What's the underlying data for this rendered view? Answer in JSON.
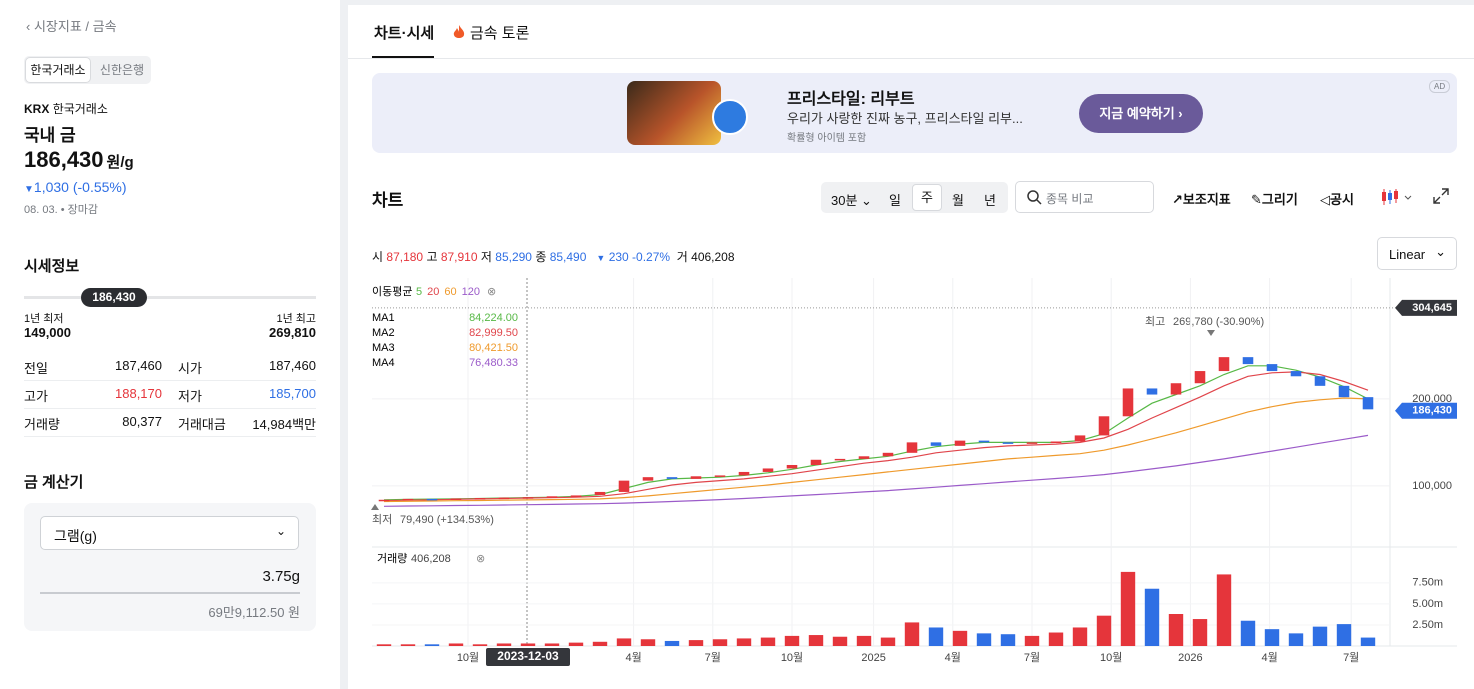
{
  "sidebar": {
    "breadcrumb": "시장지표 / 금속",
    "source_tabs": [
      "한국거래소",
      "신한은행"
    ],
    "exchange_code": "KRX",
    "exchange": "한국거래소",
    "name": "국내 금",
    "price": "186,430",
    "unit": "원/g",
    "change": "1,030 (-0.55%)",
    "date": "08. 03.",
    "status": "장마감",
    "section_title": "시세정보",
    "range_current": "186,430",
    "low_label": "1년 최저",
    "low": "149,000",
    "high_label": "1년 최고",
    "high": "269,810",
    "stats": [
      [
        "전일",
        "187,460",
        "시가",
        "187,460"
      ],
      [
        "고가",
        "188,170",
        "저가",
        "185,700"
      ],
      [
        "거래량",
        "80,377",
        "거래대금",
        "14,984백만"
      ]
    ],
    "calc_title": "금 계산기",
    "calc_unit": "그램(g)",
    "calc_amount": "3.75g",
    "calc_result": "69만9,112.50 원"
  },
  "tabs": [
    "차트·시세",
    "금속 토론"
  ],
  "ad": {
    "title": "프리스타일: 리부트",
    "description": "우리가 사랑한 진짜 농구, 프리스타일 리부...",
    "note": "확률형 아이템 포함",
    "button": "지금 예약하기 ›",
    "badge": "AD"
  },
  "toolbar": {
    "title": "차트",
    "interval": "30분",
    "periods": [
      "일",
      "주",
      "월",
      "년"
    ],
    "search": "종목 비교",
    "tools": [
      "보조지표",
      "그리기",
      "공시"
    ],
    "scale": "Linear"
  },
  "quote": {
    "open_label": "시",
    "open": "87,180",
    "high_label": "고",
    "high": "87,910",
    "low_label": "저",
    "low": "85,290",
    "close_label": "종",
    "close": "85,490",
    "change": "230 -0.27%",
    "volume_label": "거",
    "volume": "406,208"
  },
  "chart_data": {
    "type": "candlestick",
    "categories": [
      null,
      null,
      null,
      null,
      null,
      null,
      null,
      null,
      null,
      null,
      null,
      null,
      null,
      null,
      null,
      null,
      null,
      null,
      null,
      null,
      null,
      null,
      null,
      null,
      null,
      null,
      null,
      null,
      null,
      null,
      null,
      null,
      null,
      null,
      null,
      null,
      null,
      null,
      null,
      null,
      null,
      null
    ],
    "open": [
      83500,
      84000,
      85000,
      84500,
      85500,
      86000,
      86500,
      87000,
      88000,
      89500,
      93000,
      106000,
      110000,
      108000,
      111000,
      112000,
      116000,
      120000,
      124000,
      130000,
      131000,
      134000,
      138000,
      150000,
      146000,
      152000,
      150000,
      149000,
      150000,
      151000,
      158000,
      180000,
      212000,
      205000,
      218000,
      232000,
      248000,
      240000,
      232000,
      226000,
      215000,
      202000
    ],
    "close": [
      84000,
      85000,
      84500,
      85500,
      86000,
      86500,
      87000,
      88000,
      89000,
      93000,
      106000,
      110000,
      108000,
      111000,
      112000,
      116000,
      120000,
      124000,
      130000,
      131000,
      134000,
      138000,
      150000,
      146000,
      152000,
      150000,
      149000,
      150000,
      151000,
      158000,
      180000,
      212000,
      205000,
      218000,
      232000,
      248000,
      240000,
      232000,
      226000,
      215000,
      202000,
      188000
    ],
    "up_color": "#e5353b",
    "down_color": "#2f6fe4",
    "series": [
      {
        "name": "MA1",
        "color": "#57b846",
        "values": [
          84000,
          84500,
          84800,
          85000,
          85500,
          86000,
          86500,
          87000,
          88000,
          90000,
          97000,
          104000,
          108000,
          109000,
          110000,
          112000,
          115000,
          119000,
          124000,
          128000,
          131000,
          134000,
          140000,
          145000,
          148000,
          150000,
          150000,
          150000,
          150000,
          152000,
          160000,
          178000,
          195000,
          205000,
          215000,
          228000,
          238000,
          238000,
          233000,
          225000,
          214000,
          200000
        ]
      },
      {
        "name": "MA2",
        "color": "#e0454b",
        "values": [
          83000,
          83500,
          84000,
          84500,
          85000,
          85500,
          86000,
          86500,
          87000,
          88000,
          91000,
          96000,
          101000,
          104000,
          106000,
          108000,
          111000,
          114000,
          118000,
          122000,
          126000,
          129000,
          133000,
          138000,
          141000,
          144000,
          146000,
          147000,
          148000,
          150000,
          155000,
          165000,
          178000,
          190000,
          202000,
          215000,
          226000,
          230000,
          231000,
          228000,
          220000,
          210000
        ]
      },
      {
        "name": "MA3",
        "color": "#ef9a2c",
        "values": [
          82000,
          82300,
          82600,
          82900,
          83200,
          83500,
          83800,
          84200,
          84600,
          85000,
          86500,
          88500,
          91000,
          93500,
          96000,
          98500,
          101000,
          104000,
          107000,
          110000,
          113000,
          116000,
          119000,
          122000,
          125000,
          128000,
          131000,
          133000,
          135000,
          137000,
          141000,
          147000,
          154000,
          161000,
          169000,
          177000,
          185000,
          191000,
          196000,
          199000,
          201000,
          200000
        ]
      },
      {
        "name": "MA4",
        "color": "#9b5bc9",
        "values": [
          76500,
          76800,
          77100,
          77400,
          77700,
          78000,
          78300,
          78700,
          79100,
          79500,
          80200,
          81000,
          82000,
          83000,
          84200,
          85500,
          87000,
          88500,
          90000,
          91500,
          93000,
          94500,
          96500,
          98500,
          100500,
          102500,
          104500,
          106500,
          108500,
          110500,
          113000,
          116000,
          119500,
          123000,
          127000,
          131000,
          135500,
          140000,
          144500,
          149000,
          153500,
          158000
        ]
      }
    ],
    "ma_legend": {
      "title": "이동평균",
      "periods": [
        5,
        20,
        60,
        120
      ],
      "last_values": [
        "84,224.00",
        "82,999.50",
        "80,421.50",
        "76,480.33"
      ]
    },
    "ylim": [
      32000,
      339000
    ],
    "yticks": [
      {
        "value": 100000,
        "label": "100,000"
      },
      {
        "value": 200000,
        "label": "200,000"
      }
    ],
    "crosshair": {
      "value": 304645,
      "label": "304,645",
      "date": "2023-12-03"
    },
    "current": {
      "value": 186430,
      "label": "186,430"
    },
    "max_annotation": {
      "label": "최고",
      "text": "269,780 (-30.90%)"
    },
    "min_annotation": {
      "label": "최저",
      "text": "79,490 (+134.53%)"
    },
    "xlim": [
      -0.5,
      41.5
    ],
    "xticks": [
      {
        "value": 3.5,
        "label": "10월"
      },
      {
        "value": 10.4,
        "label": "4월"
      },
      {
        "value": 13.7,
        "label": "7월"
      },
      {
        "value": 17.0,
        "label": "10월"
      },
      {
        "value": 20.4,
        "label": "2025"
      },
      {
        "value": 23.7,
        "label": "4월"
      },
      {
        "value": 27.0,
        "label": "7월"
      },
      {
        "value": 30.3,
        "label": "10월"
      },
      {
        "value": 33.6,
        "label": "2026"
      },
      {
        "value": 36.9,
        "label": "4월"
      },
      {
        "value": 40.3,
        "label": "7월"
      }
    ],
    "volume": {
      "title": "거래량",
      "last": "406,208",
      "values": [
        0.2,
        0.2,
        0.2,
        0.3,
        0.2,
        0.3,
        0.3,
        0.3,
        0.4,
        0.5,
        0.9,
        0.8,
        0.6,
        0.7,
        0.8,
        0.9,
        1.0,
        1.2,
        1.3,
        1.1,
        1.2,
        1.0,
        2.8,
        2.2,
        1.8,
        1.5,
        1.4,
        1.2,
        1.6,
        2.2,
        3.6,
        8.8,
        6.8,
        3.8,
        3.2,
        8.5,
        3.0,
        2.0,
        1.5,
        2.3,
        2.6,
        1.0
      ],
      "ylim": [
        0,
        11.4
      ],
      "yticks": [
        {
          "value": 2.5,
          "label": "2.50m"
        },
        {
          "value": 5,
          "label": "5.00m"
        },
        {
          "value": 7.5,
          "label": "7.50m"
        }
      ]
    }
  }
}
